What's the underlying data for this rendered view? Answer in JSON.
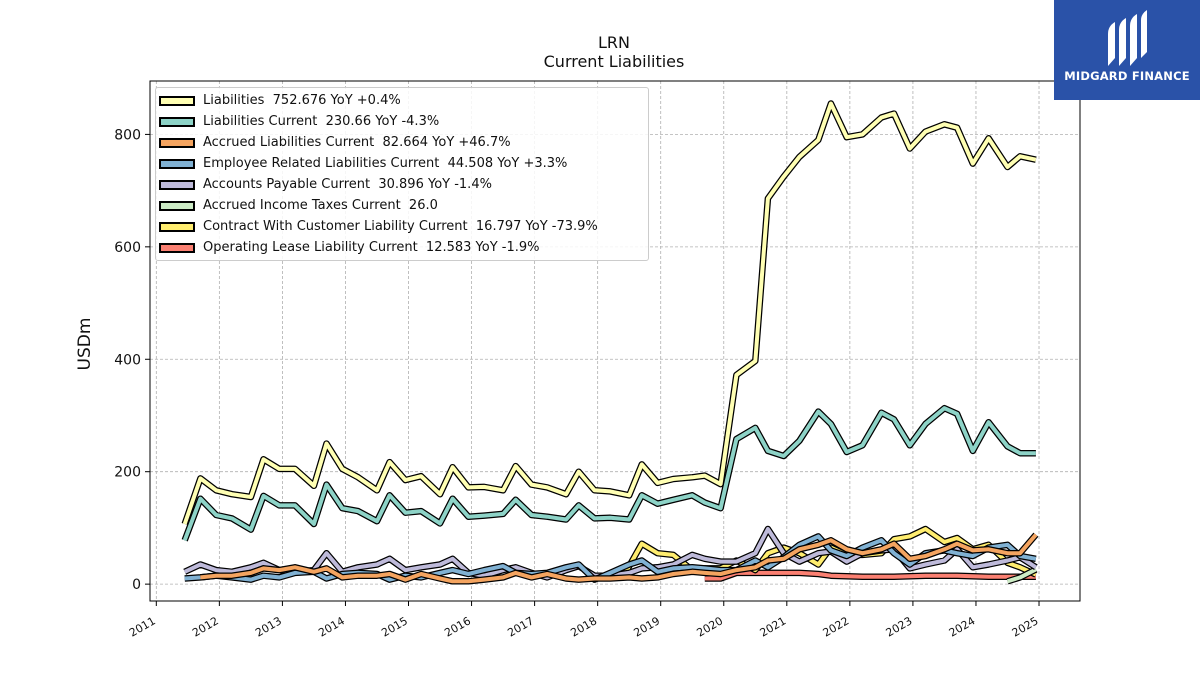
{
  "title": "LRN",
  "subtitle": "Current  Liabilities",
  "watermark": {
    "brand": "MIDGARD FINANCE",
    "icon": "midgard-logo-icon",
    "background": "#2a52a8"
  },
  "chart_data": {
    "type": "line",
    "ylabel": "USDm",
    "xlabel": "",
    "ylim": [
      -30,
      895
    ],
    "xlim": [
      2010.9,
      2025.65
    ],
    "yticks": [
      "0",
      "200",
      "400",
      "600",
      "800"
    ],
    "xticks": [
      "2011",
      "2012",
      "2013",
      "2014",
      "2015",
      "2016",
      "2017",
      "2018",
      "2019",
      "2020",
      "2021",
      "2022",
      "2023",
      "2024",
      "2025"
    ],
    "grid": true,
    "legend_position": "top-left",
    "series": [
      {
        "name": "Liabilities",
        "legend_label": "Liabilities  752.676 YoY +0.4%",
        "color": "#ffffb3",
        "x": [
          2011.45,
          2011.7,
          2011.95,
          2012.2,
          2012.5,
          2012.7,
          2012.95,
          2013.2,
          2013.5,
          2013.7,
          2013.95,
          2014.2,
          2014.5,
          2014.7,
          2014.95,
          2015.2,
          2015.5,
          2015.7,
          2015.95,
          2016.2,
          2016.5,
          2016.7,
          2016.95,
          2017.2,
          2017.5,
          2017.7,
          2017.95,
          2018.2,
          2018.5,
          2018.7,
          2018.95,
          2019.2,
          2019.5,
          2019.7,
          2019.95,
          2020.2,
          2020.5,
          2020.7,
          2020.95,
          2021.2,
          2021.5,
          2021.7,
          2021.95,
          2022.2,
          2022.5,
          2022.7,
          2022.95,
          2023.2,
          2023.5,
          2023.7,
          2023.95,
          2024.2,
          2024.5,
          2024.7,
          2024.95
        ],
        "y": [
          107,
          188,
          167,
          160,
          155,
          222,
          205,
          205,
          175,
          250,
          205,
          190,
          167,
          217,
          185,
          192,
          160,
          208,
          172,
          173,
          167,
          210,
          177,
          172,
          160,
          200,
          167,
          165,
          158,
          213,
          180,
          187,
          190,
          193,
          178,
          372,
          397,
          686,
          725,
          760,
          790,
          855,
          795,
          800,
          830,
          837,
          775,
          805,
          818,
          812,
          748,
          793,
          742,
          761,
          755
        ]
      },
      {
        "name": "Liabilities Current",
        "legend_label": "Liabilities Current  230.66 YoY -4.3%",
        "color": "#8dd3c7",
        "x": [
          2011.45,
          2011.7,
          2011.95,
          2012.2,
          2012.5,
          2012.7,
          2012.95,
          2013.2,
          2013.5,
          2013.7,
          2013.95,
          2014.2,
          2014.5,
          2014.7,
          2014.95,
          2015.2,
          2015.5,
          2015.7,
          2015.95,
          2016.2,
          2016.5,
          2016.7,
          2016.95,
          2017.2,
          2017.5,
          2017.7,
          2017.95,
          2018.2,
          2018.5,
          2018.7,
          2018.95,
          2019.2,
          2019.5,
          2019.7,
          2019.95,
          2020.2,
          2020.5,
          2020.7,
          2020.95,
          2021.2,
          2021.5,
          2021.7,
          2021.95,
          2022.2,
          2022.5,
          2022.7,
          2022.95,
          2023.2,
          2023.5,
          2023.7,
          2023.95,
          2024.2,
          2024.5,
          2024.7,
          2024.95
        ],
        "y": [
          78,
          152,
          123,
          117,
          97,
          157,
          140,
          140,
          107,
          177,
          135,
          130,
          112,
          158,
          127,
          130,
          108,
          152,
          120,
          122,
          125,
          150,
          123,
          120,
          115,
          140,
          117,
          118,
          115,
          158,
          143,
          150,
          158,
          145,
          135,
          258,
          278,
          237,
          228,
          255,
          307,
          285,
          235,
          247,
          305,
          293,
          247,
          285,
          313,
          303,
          237,
          288,
          245,
          233,
          233
        ]
      },
      {
        "name": "Accrued Liabilities Current",
        "legend_label": "Accrued Liabilities Current  82.664 YoY +46.7%",
        "color": "#f4a460",
        "x": [
          2011.7,
          2011.95,
          2012.2,
          2012.5,
          2012.7,
          2012.95,
          2013.2,
          2013.5,
          2013.7,
          2013.95,
          2014.2,
          2014.5,
          2014.7,
          2014.95,
          2015.2,
          2015.5,
          2015.7,
          2015.95,
          2016.2,
          2016.5,
          2016.7,
          2016.95,
          2017.2,
          2017.5,
          2017.7,
          2017.95,
          2018.2,
          2018.5,
          2018.7,
          2018.95,
          2019.2,
          2019.5,
          2019.7,
          2019.95,
          2020.2,
          2020.5,
          2020.7,
          2020.95,
          2021.2,
          2021.5,
          2021.7,
          2021.95,
          2022.2,
          2022.5,
          2022.7,
          2022.95,
          2023.2,
          2023.5,
          2023.7,
          2023.95,
          2024.2,
          2024.5,
          2024.7,
          2024.95
        ],
        "y": [
          12,
          15,
          15,
          20,
          28,
          25,
          30,
          22,
          28,
          12,
          15,
          15,
          18,
          8,
          18,
          10,
          5,
          5,
          8,
          12,
          20,
          12,
          18,
          10,
          8,
          10,
          10,
          12,
          10,
          12,
          18,
          22,
          20,
          18,
          25,
          30,
          42,
          45,
          62,
          70,
          78,
          62,
          55,
          62,
          72,
          45,
          50,
          62,
          72,
          60,
          62,
          55,
          55,
          88
        ]
      },
      {
        "name": "Employee Related Liabilities Current",
        "legend_label": "Employee Related Liabilities Current  44.508 YoY +3.3%",
        "color": "#80b1d3",
        "x": [
          2011.45,
          2011.7,
          2011.95,
          2012.2,
          2012.5,
          2012.7,
          2012.95,
          2013.2,
          2013.5,
          2013.7,
          2013.95,
          2014.2,
          2014.5,
          2014.7,
          2014.95,
          2015.2,
          2015.5,
          2015.7,
          2015.95,
          2016.2,
          2016.5,
          2016.7,
          2016.95,
          2017.2,
          2017.5,
          2017.7,
          2017.95,
          2018.2,
          2018.5,
          2018.7,
          2018.95,
          2019.2,
          2019.5,
          2019.7,
          2019.95,
          2020.2,
          2020.5,
          2020.7,
          2020.95,
          2021.2,
          2021.5,
          2021.7,
          2021.95,
          2022.2,
          2022.5,
          2022.7,
          2022.95,
          2023.2,
          2023.5,
          2023.7,
          2023.95,
          2024.2,
          2024.5,
          2024.7,
          2024.95
        ],
        "y": [
          10,
          12,
          15,
          12,
          8,
          15,
          12,
          20,
          22,
          10,
          18,
          20,
          18,
          8,
          15,
          12,
          20,
          25,
          18,
          25,
          32,
          20,
          18,
          20,
          30,
          35,
          8,
          20,
          35,
          42,
          22,
          28,
          30,
          28,
          25,
          25,
          42,
          30,
          48,
          70,
          85,
          60,
          50,
          65,
          78,
          55,
          35,
          55,
          60,
          55,
          50,
          65,
          70,
          50,
          45
        ]
      },
      {
        "name": "Accounts Payable Current",
        "legend_label": "Accounts Payable Current  30.896 YoY -1.4%",
        "color": "#bebada",
        "x": [
          2011.45,
          2011.7,
          2011.95,
          2012.2,
          2012.5,
          2012.7,
          2012.95,
          2013.2,
          2013.5,
          2013.7,
          2013.95,
          2014.2,
          2014.5,
          2014.7,
          2014.95,
          2015.2,
          2015.5,
          2015.7,
          2015.95,
          2016.2,
          2016.5,
          2016.7,
          2016.95,
          2017.2,
          2017.5,
          2017.7,
          2017.95,
          2018.2,
          2018.5,
          2018.7,
          2018.95,
          2019.2,
          2019.5,
          2019.7,
          2019.95,
          2020.2,
          2020.5,
          2020.7,
          2020.95,
          2021.2,
          2021.5,
          2021.7,
          2021.95,
          2022.2,
          2022.5,
          2022.7,
          2022.95,
          2023.2,
          2023.5,
          2023.7,
          2023.95,
          2024.2,
          2024.5,
          2024.7,
          2024.95
        ],
        "y": [
          22,
          35,
          25,
          22,
          30,
          38,
          25,
          22,
          25,
          55,
          22,
          30,
          35,
          45,
          25,
          30,
          35,
          45,
          20,
          15,
          25,
          30,
          20,
          12,
          25,
          32,
          15,
          15,
          20,
          28,
          30,
          35,
          52,
          45,
          40,
          40,
          55,
          98,
          55,
          40,
          55,
          58,
          40,
          55,
          60,
          62,
          28,
          35,
          42,
          62,
          30,
          35,
          42,
          48,
          30
        ]
      },
      {
        "name": "Accrued Income Taxes Current",
        "legend_label": "Accrued Income Taxes Current  26.0",
        "color": "#ccebc5",
        "x": [
          2024.5,
          2024.7,
          2024.95
        ],
        "y": [
          5,
          12,
          26
        ]
      },
      {
        "name": "Contract With Customer Liability Current",
        "legend_label": "Contract With Customer Liability Current  16.797 YoY -73.9%",
        "color": "#ffed6f",
        "x": [
          2018.45,
          2018.7,
          2018.95,
          2019.2,
          2019.5,
          2019.7,
          2019.95,
          2020.2,
          2020.5,
          2020.7,
          2020.95,
          2021.2,
          2021.5,
          2021.7,
          2021.95,
          2022.2,
          2022.5,
          2022.7,
          2022.95,
          2023.2,
          2023.5,
          2023.7,
          2023.95,
          2024.2,
          2024.5,
          2024.7,
          2024.95
        ],
        "y": [
          22,
          72,
          55,
          52,
          25,
          28,
          28,
          42,
          25,
          55,
          65,
          55,
          35,
          65,
          52,
          52,
          55,
          80,
          85,
          98,
          75,
          82,
          62,
          70,
          38,
          30,
          17
        ]
      },
      {
        "name": "Operating Lease Liability Current",
        "legend_label": "Operating Lease Liability Current  12.583 YoY -1.9%",
        "color": "#fb8072",
        "x": [
          2019.7,
          2019.95,
          2020.2,
          2020.5,
          2020.7,
          2020.95,
          2021.2,
          2021.5,
          2021.7,
          2021.95,
          2022.2,
          2022.5,
          2022.7,
          2022.95,
          2023.2,
          2023.5,
          2023.7,
          2023.95,
          2024.2,
          2024.5,
          2024.7,
          2024.95
        ],
        "y": [
          10,
          10,
          20,
          20,
          20,
          20,
          20,
          18,
          15,
          14,
          13,
          13,
          13,
          14,
          15,
          15,
          15,
          14,
          13,
          13,
          13,
          13
        ]
      }
    ]
  }
}
